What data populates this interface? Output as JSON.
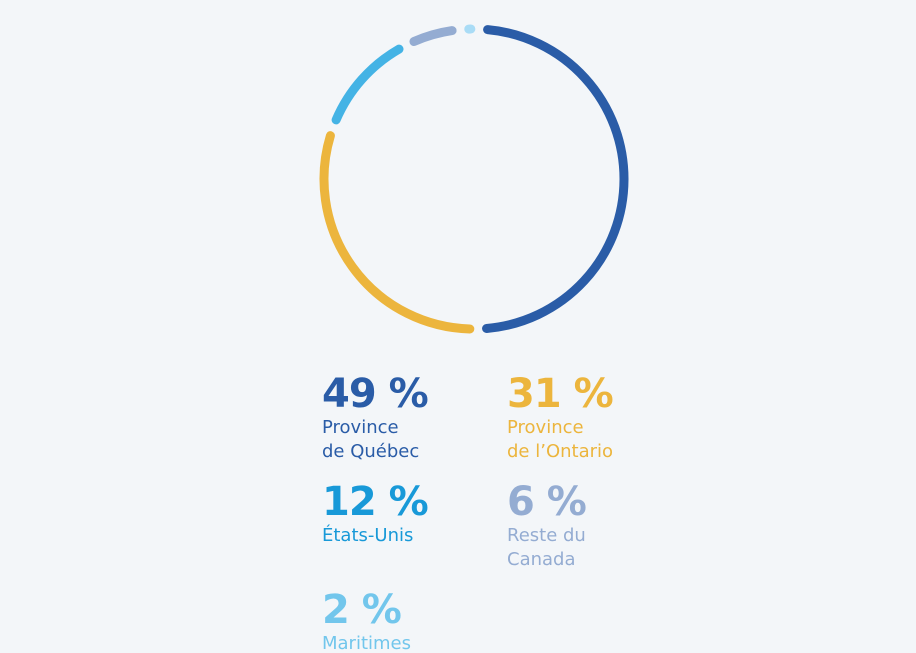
{
  "chart_data": {
    "type": "donut",
    "categories": [
      "Province\nde Québec",
      "Province\nde l’Ontario",
      "États-Unis",
      "Reste du\nCanada",
      "Maritimes"
    ],
    "values": [
      49,
      31,
      12,
      6,
      2
    ],
    "value_labels": [
      "49 %",
      "31 %",
      "12 %",
      "6 %",
      "2 %"
    ],
    "colors": [
      "#2a5ca7",
      "#ecb53d",
      "#44b3e5",
      "#94acd2",
      "#a9dcf6"
    ],
    "label_colors": [
      "#2a5ca7",
      "#ecb53d",
      "#1899d8",
      "#94acd2",
      "#72c6ec"
    ]
  }
}
